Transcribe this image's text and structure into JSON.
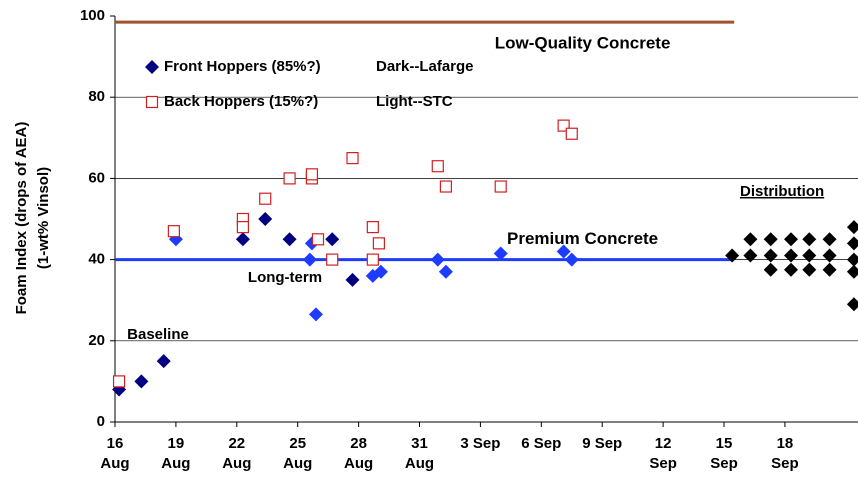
{
  "chart_data": {
    "type": "scatter",
    "ylabel": [
      "Foam Index (drops of AEA)",
      "(1-wt% Vinsol)"
    ],
    "xlim": [
      16,
      52.6
    ],
    "ylim": [
      0,
      100
    ],
    "yticks": [
      0,
      20,
      40,
      60,
      80,
      100
    ],
    "xticks": [
      {
        "value": 16,
        "label": "16\nAug"
      },
      {
        "value": 19,
        "label": "19\nAug"
      },
      {
        "value": 22,
        "label": "22\nAug"
      },
      {
        "value": 25,
        "label": "25\nAug"
      },
      {
        "value": 28,
        "label": "28\nAug"
      },
      {
        "value": 31,
        "label": "31\nAug"
      },
      {
        "value": 34,
        "label": "3 Sep"
      },
      {
        "value": 37,
        "label": "6 Sep"
      },
      {
        "value": 40,
        "label": "9 Sep"
      },
      {
        "value": 43,
        "label": "12\nSep"
      },
      {
        "value": 46,
        "label": "15\nSep"
      },
      {
        "value": 49,
        "label": "18\nSep"
      }
    ],
    "grid": true,
    "series": [
      {
        "name": "Front Hoppers (85%?)",
        "color": "#000080",
        "marker": "diamond",
        "x": [
          16.2,
          17.3,
          18.4,
          22.3,
          23.4,
          24.6,
          26.7,
          27.7,
          19,
          25.6,
          25.9,
          25.7,
          28.7,
          29.1,
          31.9,
          32.3,
          35,
          38.1,
          38.5
        ],
        "values": [
          8,
          10,
          15,
          45,
          50,
          45,
          45,
          35,
          45,
          40,
          26.5,
          44,
          36,
          37,
          40,
          37,
          41.5,
          42,
          40
        ],
        "colors": [
          "#000080",
          "#000080",
          "#000080",
          "#000080",
          "#000080",
          "#000080",
          "#000080",
          "#000080",
          "#1e3cff",
          "#1e3cff",
          "#1e3cff",
          "#1e3cff",
          "#1e3cff",
          "#1e3cff",
          "#1e3cff",
          "#1e3cff",
          "#1e3cff",
          "#1e3cff",
          "#1e3cff"
        ]
      },
      {
        "name": "Back Hoppers (15%?)",
        "color": "#d02020",
        "marker": "open-square",
        "x": [
          16.2,
          18.9,
          22.3,
          22.3,
          23.4,
          24.6,
          25.7,
          25.7,
          26,
          26.7,
          27.7,
          28.7,
          28.7,
          29,
          31.9,
          32.3,
          35,
          38.1,
          38.5
        ],
        "values": [
          10,
          47,
          50,
          48,
          55,
          60,
          60,
          61,
          45,
          40,
          65,
          48,
          40,
          44,
          63,
          58,
          58,
          73,
          71
        ]
      }
    ],
    "distribution": {
      "label": "Distribution",
      "color": "#000000",
      "x": [
        46.4,
        47.3,
        47.3,
        48.3,
        48.3,
        48.3,
        49.3,
        49.3,
        49.3,
        50.2,
        50.2,
        50.2,
        51.2,
        51.2,
        51.2,
        52.4,
        52.4,
        52.4,
        52.4,
        52.4
      ],
      "values": [
        41,
        45,
        41,
        45,
        41,
        37.5,
        45,
        41,
        37.5,
        45,
        41,
        37.5,
        45,
        41,
        37.5,
        48,
        44,
        40,
        37,
        29
      ]
    },
    "lines": [
      {
        "label": "Low-Quality Concrete",
        "value": 98.5,
        "x": [
          16,
          46.5
        ],
        "color": "#a0522d"
      },
      {
        "label": "Premium Concrete",
        "value": 40,
        "x": [
          16,
          46.5
        ],
        "color": "#1e3cff"
      }
    ],
    "annotations": [
      "Long-term",
      "Baseline",
      "Dark--Lafarge",
      "Light--STC"
    ]
  }
}
